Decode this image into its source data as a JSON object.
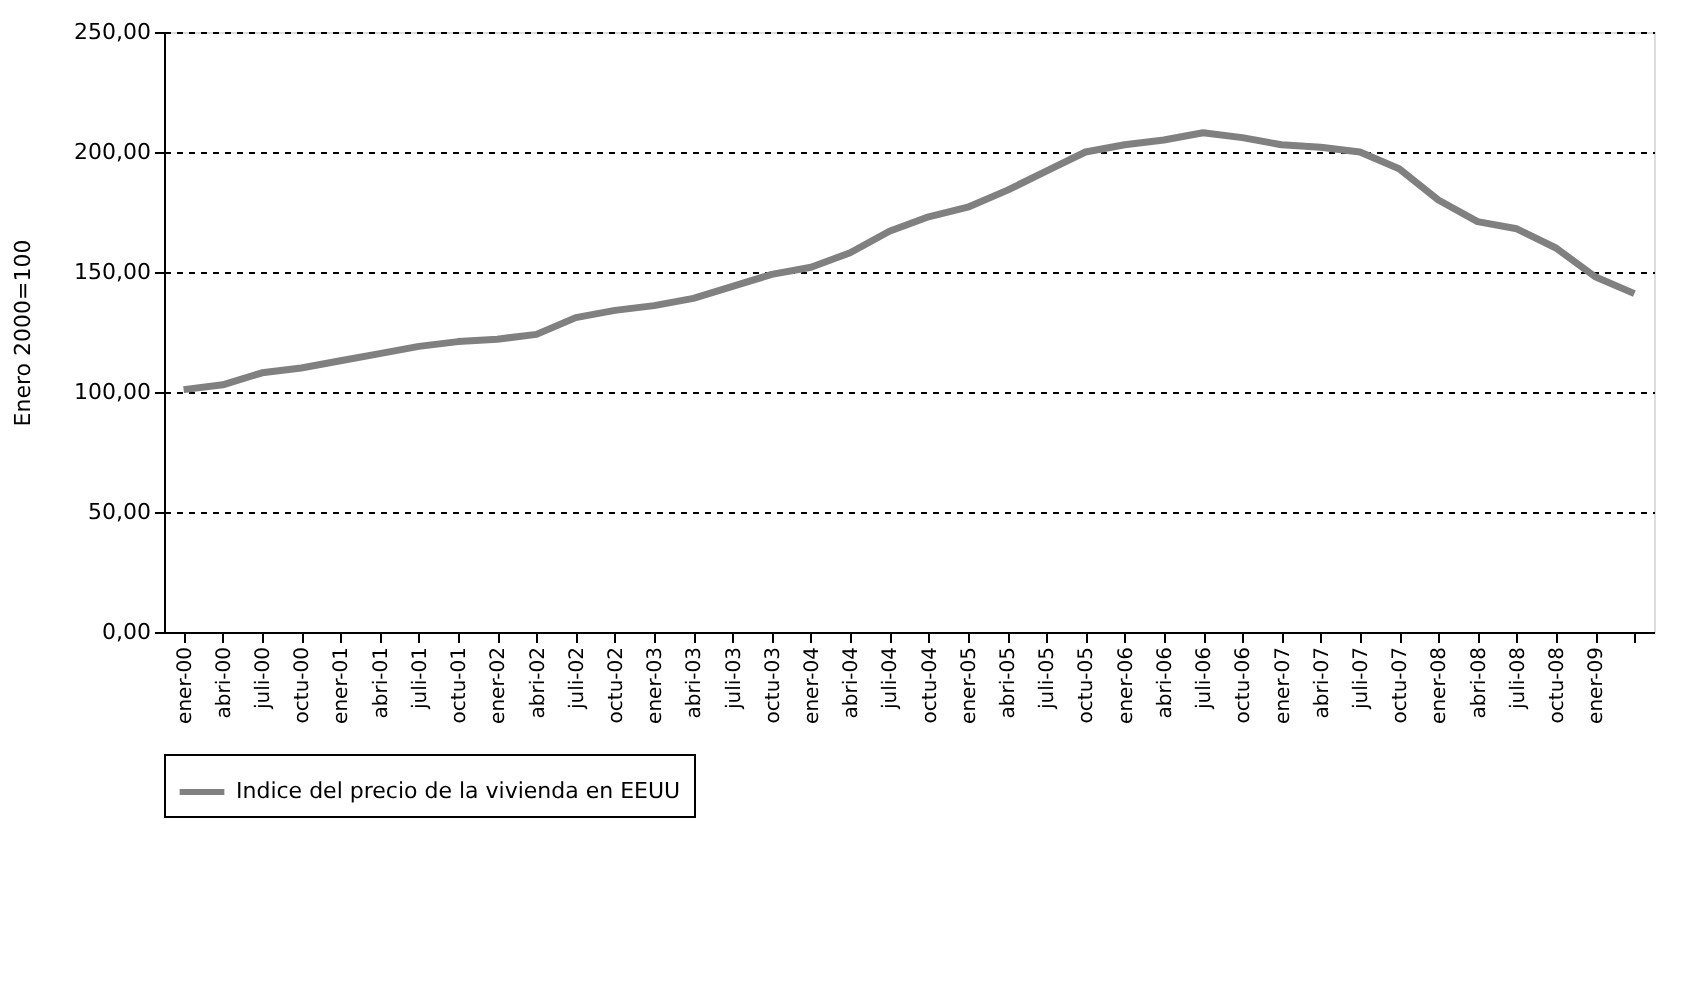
{
  "chart_data": {
    "type": "line",
    "ylabel": "Enero 2000=100",
    "categories": [
      "ener-00",
      "abri-00",
      "juli-00",
      "octu-00",
      "ener-01",
      "abri-01",
      "juli-01",
      "octu-01",
      "ener-02",
      "abri-02",
      "juli-02",
      "octu-02",
      "ener-03",
      "abri-03",
      "juli-03",
      "octu-03",
      "ener-04",
      "abri-04",
      "juli-04",
      "octu-04",
      "ener-05",
      "abri-05",
      "juli-05",
      "octu-05",
      "ener-06",
      "abri-06",
      "juli-06",
      "octu-06",
      "ener-07",
      "abri-07",
      "juli-07",
      "octu-07",
      "ener-08",
      "abri-08",
      "juli-08",
      "octu-08",
      "ener-09",
      null
    ],
    "series": [
      {
        "name": "Indice del precio de la vivienda en EEUU",
        "color": "#808080",
        "values": [
          101,
          103,
          108,
          110,
          113,
          116,
          119,
          121,
          122,
          124,
          131,
          134,
          136,
          139,
          144,
          149,
          152,
          158,
          167,
          173,
          177,
          184,
          192,
          200,
          203,
          205,
          208,
          206,
          203,
          202,
          200,
          193,
          180,
          171,
          168,
          160,
          148,
          141
        ]
      }
    ],
    "ylim": [
      0,
      250
    ],
    "yticks": [
      {
        "value": 0,
        "label": "0,00"
      },
      {
        "value": 50,
        "label": "50,00"
      },
      {
        "value": 100,
        "label": "100,00"
      },
      {
        "value": 150,
        "label": "150,00"
      },
      {
        "value": 200,
        "label": "200,00"
      },
      {
        "value": 250,
        "label": "250,00"
      }
    ],
    "grid": "y",
    "legend": "bottom",
    "marker": "none",
    "line_style": "solid"
  }
}
